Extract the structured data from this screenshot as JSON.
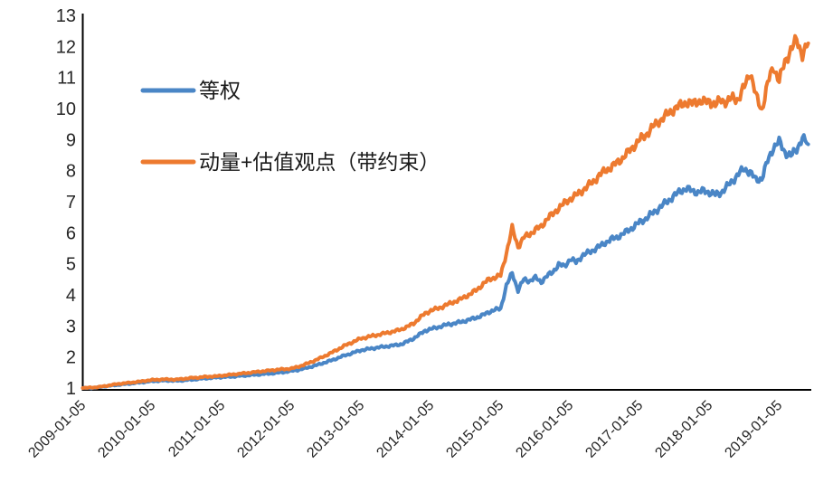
{
  "chart_data": {
    "type": "line",
    "title": "",
    "xlabel": "",
    "ylabel": "",
    "ylim": [
      1,
      13
    ],
    "y_ticks": [
      1,
      2,
      3,
      4,
      5,
      6,
      7,
      8,
      9,
      10,
      11,
      12,
      13
    ],
    "x_tick_labels": [
      "2009-01-05",
      "2010-01-05",
      "2011-01-05",
      "2012-01-05",
      "2013-01-05",
      "2014-01-05",
      "2015-01-05",
      "2016-01-05",
      "2017-01-05",
      "2018-01-05",
      "2019-01-05"
    ],
    "x_resolution": "monthly from 2009-01 to 2019-06",
    "grid": false,
    "legend_position": "upper-left-inside",
    "axis_color": "#000000",
    "label_color": "#262626",
    "series": [
      {
        "name": "等权",
        "color": "#4A86C6",
        "monthly_values": [
          1.0,
          1.0,
          1.01,
          1.03,
          1.06,
          1.08,
          1.1,
          1.12,
          1.14,
          1.16,
          1.18,
          1.2,
          1.22,
          1.23,
          1.24,
          1.24,
          1.23,
          1.24,
          1.26,
          1.27,
          1.29,
          1.31,
          1.32,
          1.34,
          1.35,
          1.36,
          1.37,
          1.39,
          1.4,
          1.42,
          1.43,
          1.45,
          1.46,
          1.48,
          1.5,
          1.52,
          1.55,
          1.58,
          1.62,
          1.67,
          1.72,
          1.78,
          1.84,
          1.9,
          1.97,
          2.04,
          2.1,
          2.16,
          2.22,
          2.25,
          2.28,
          2.31,
          2.33,
          2.36,
          2.38,
          2.42,
          2.5,
          2.6,
          2.72,
          2.85,
          2.9,
          2.95,
          3.0,
          3.05,
          3.08,
          3.12,
          3.17,
          3.22,
          3.28,
          3.35,
          3.45,
          3.52,
          3.55,
          4.3,
          4.7,
          4.15,
          4.5,
          4.45,
          4.55,
          4.42,
          4.6,
          4.75,
          4.97,
          4.93,
          5.15,
          5.05,
          5.25,
          5.35,
          5.45,
          5.55,
          5.68,
          5.78,
          5.85,
          5.95,
          6.08,
          6.2,
          6.35,
          6.45,
          6.6,
          6.75,
          6.9,
          7.05,
          7.2,
          7.35,
          7.42,
          7.35,
          7.3,
          7.35,
          7.3,
          7.22,
          7.3,
          7.48,
          7.68,
          7.9,
          8.06,
          7.95,
          7.7,
          7.75,
          8.3,
          8.75,
          8.93,
          8.6,
          8.46,
          8.7,
          9.05,
          8.85
        ]
      },
      {
        "name": "动量+估值观点（带约束）",
        "color": "#ED7A2F",
        "monthly_values": [
          1.0,
          1.01,
          1.02,
          1.04,
          1.07,
          1.1,
          1.13,
          1.15,
          1.17,
          1.19,
          1.21,
          1.24,
          1.26,
          1.27,
          1.28,
          1.28,
          1.27,
          1.29,
          1.31,
          1.33,
          1.34,
          1.36,
          1.37,
          1.38,
          1.4,
          1.42,
          1.44,
          1.46,
          1.48,
          1.5,
          1.52,
          1.54,
          1.56,
          1.58,
          1.6,
          1.61,
          1.63,
          1.68,
          1.74,
          1.81,
          1.89,
          1.97,
          2.06,
          2.15,
          2.25,
          2.35,
          2.44,
          2.52,
          2.6,
          2.64,
          2.68,
          2.72,
          2.76,
          2.8,
          2.84,
          2.9,
          2.98,
          3.08,
          3.25,
          3.4,
          3.5,
          3.55,
          3.62,
          3.7,
          3.78,
          3.85,
          3.95,
          4.05,
          4.18,
          4.35,
          4.5,
          4.56,
          4.62,
          5.35,
          6.15,
          5.55,
          5.85,
          5.95,
          6.1,
          6.2,
          6.45,
          6.6,
          6.8,
          6.95,
          7.1,
          7.2,
          7.35,
          7.5,
          7.65,
          7.85,
          8.0,
          8.1,
          8.25,
          8.4,
          8.6,
          8.8,
          9.0,
          9.15,
          9.35,
          9.55,
          9.7,
          9.85,
          10.0,
          10.1,
          10.2,
          10.15,
          10.25,
          10.2,
          10.25,
          10.1,
          10.3,
          10.2,
          10.35,
          10.3,
          10.7,
          11.2,
          10.4,
          9.95,
          10.8,
          11.35,
          10.9,
          11.5,
          11.9,
          12.2,
          11.75,
          12.1
        ]
      }
    ]
  }
}
